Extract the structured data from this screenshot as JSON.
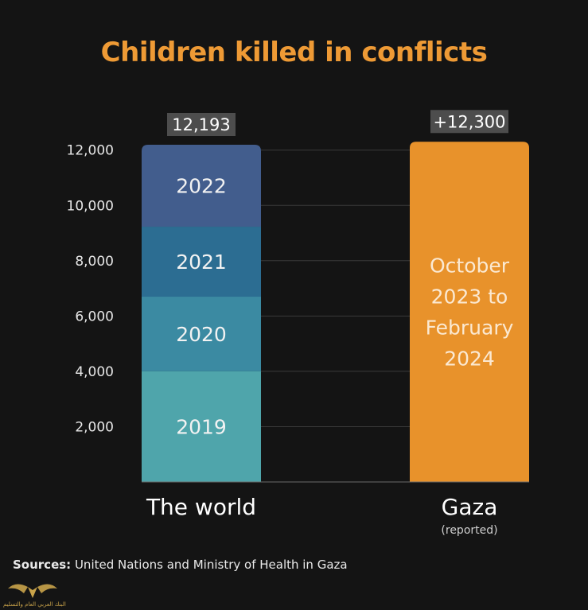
{
  "chart_data": {
    "type": "bar",
    "title": "Children killed in conflicts",
    "ylim": [
      0,
      12193
    ],
    "yticks": [
      2000,
      4000,
      6000,
      8000,
      10000,
      12000
    ],
    "ytick_labels": [
      "2,000",
      "4,000",
      "6,000",
      "8,000",
      "10,000",
      "12,000"
    ],
    "grid": true,
    "categories": [
      "The world",
      "Gaza"
    ],
    "category_sublabels": [
      "",
      "(reported)"
    ],
    "total_labels": [
      "12,193",
      "+12,300"
    ],
    "bars": [
      {
        "category": "The world",
        "segments": [
          {
            "label": "2019",
            "value": 4000,
            "color": "#4fa5ab"
          },
          {
            "label": "2020",
            "value": 2700,
            "color": "#3b8aa2"
          },
          {
            "label": "2021",
            "value": 2530,
            "color": "#2c6d92"
          },
          {
            "label": "2022",
            "value": 2963,
            "color": "#425d8d"
          }
        ]
      },
      {
        "category": "Gaza",
        "segments": [
          {
            "label": "October 2023 to February 2024",
            "label_lines": [
              "October",
              "2023 to",
              "February",
              "2024"
            ],
            "value": 12300,
            "color": "#e8922b"
          }
        ]
      }
    ]
  },
  "sources": {
    "label": "Sources:",
    "text": " United Nations and  Ministry of Health in Gaza"
  },
  "logo": {
    "text": "البنك العربي العام والتسليم"
  }
}
